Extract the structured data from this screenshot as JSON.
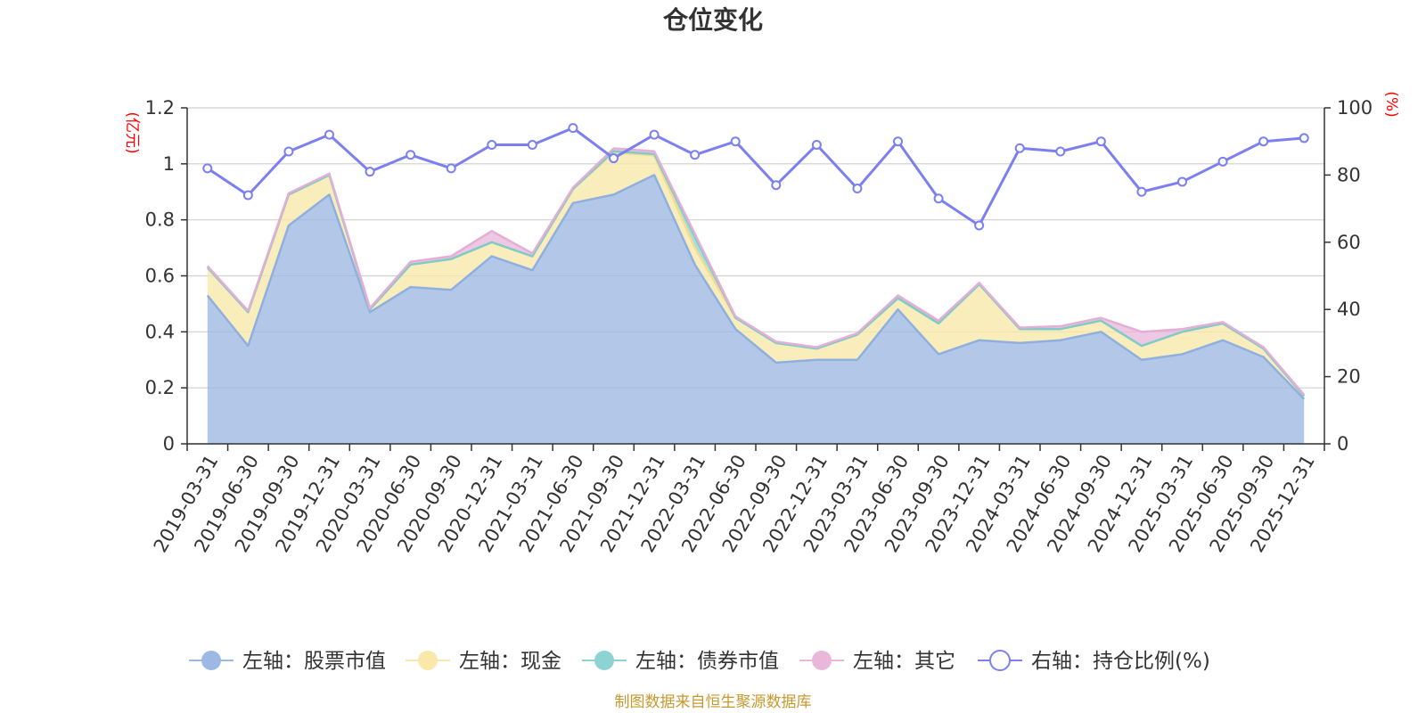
{
  "chart_data": {
    "type": "area",
    "title": "仓位变化",
    "left_axis": {
      "unit": "(亿元)",
      "ylim": [
        0,
        1.2
      ],
      "ticks": [
        "0",
        "0.2",
        "0.4",
        "0.6",
        "0.8",
        "1",
        "1.2"
      ]
    },
    "right_axis": {
      "unit": "(%)",
      "ylim": [
        0,
        100
      ],
      "ticks": [
        "0",
        "20",
        "40",
        "60",
        "80",
        "100"
      ]
    },
    "categories": [
      "2019-03-31",
      "2019-06-30",
      "2019-09-30",
      "2019-12-31",
      "2020-03-31",
      "2020-06-30",
      "2020-09-30",
      "2020-12-31",
      "2021-03-31",
      "2021-06-30",
      "2021-09-30",
      "2021-12-31",
      "2022-03-31",
      "2022-06-30",
      "2022-09-30",
      "2022-12-31",
      "2023-03-31",
      "2023-06-30",
      "2023-09-30",
      "2023-12-31",
      "2024-03-31",
      "2024-06-30",
      "2024-09-30",
      "2024-12-31",
      "2025-03-31",
      "2025-06-30",
      "2025-09-30",
      "2025-12-31"
    ],
    "series": [
      {
        "name": "左轴：股票市值",
        "axis": "left",
        "stack": true,
        "color": "#9db8e2",
        "values": [
          0.53,
          0.35,
          0.78,
          0.89,
          0.47,
          0.56,
          0.55,
          0.67,
          0.62,
          0.86,
          0.89,
          0.96,
          0.64,
          0.41,
          0.29,
          0.3,
          0.3,
          0.48,
          0.32,
          0.37,
          0.36,
          0.37,
          0.4,
          0.3,
          0.32,
          0.37,
          0.31,
          0.16
        ]
      },
      {
        "name": "左轴：现金",
        "axis": "left",
        "stack": true,
        "color": "#f9e8a9",
        "values": [
          0.1,
          0.12,
          0.11,
          0.07,
          0.01,
          0.08,
          0.11,
          0.05,
          0.05,
          0.05,
          0.15,
          0.07,
          0.06,
          0.04,
          0.07,
          0.04,
          0.09,
          0.04,
          0.11,
          0.2,
          0.05,
          0.04,
          0.04,
          0.05,
          0.08,
          0.06,
          0.03,
          0.01
        ]
      },
      {
        "name": "左轴：债券市值",
        "axis": "left",
        "stack": true,
        "color": "#8ed3d3",
        "values": [
          0,
          0,
          0,
          0,
          0,
          0,
          0,
          0,
          0,
          0,
          0.005,
          0.005,
          0.04,
          0,
          0,
          0,
          0,
          0,
          0,
          0,
          0,
          0,
          0,
          0,
          0,
          0,
          0,
          0
        ]
      },
      {
        "name": "左轴：其它",
        "axis": "left",
        "stack": true,
        "color": "#e9b7da",
        "values": [
          0.005,
          0.005,
          0.005,
          0.005,
          0.005,
          0.01,
          0.01,
          0.04,
          0.01,
          0.005,
          0.01,
          0.01,
          0.01,
          0.005,
          0.005,
          0.005,
          0.005,
          0.01,
          0.01,
          0.005,
          0.005,
          0.01,
          0.01,
          0.05,
          0.01,
          0.005,
          0.005,
          0.005
        ]
      },
      {
        "name": "右轴：持仓比例(%)",
        "axis": "right",
        "stack": false,
        "color": "#7b7ff0",
        "values": [
          82,
          74,
          87,
          92,
          81,
          86,
          82,
          89,
          89,
          94,
          85,
          92,
          86,
          90,
          77,
          89,
          76,
          90,
          73,
          65,
          88,
          87,
          90,
          75,
          78,
          84,
          90,
          91
        ]
      }
    ],
    "grid": true,
    "legend_position": "bottom",
    "source_note": "制图数据来自恒生聚源数据库"
  }
}
